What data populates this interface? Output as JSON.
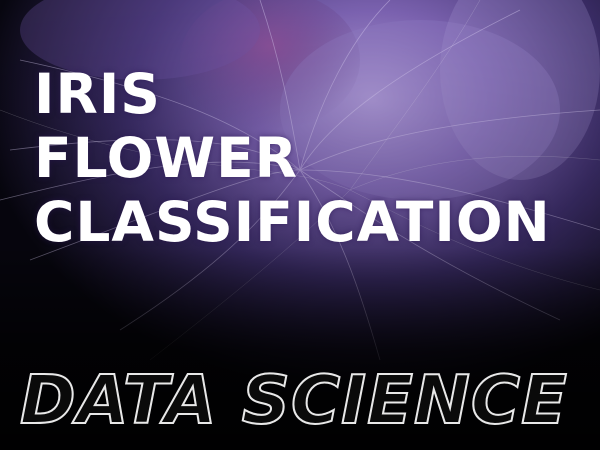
{
  "title": {
    "line1": "IRIS",
    "line2": "FLOWER",
    "line3": "CLASSIFICATION"
  },
  "footer": {
    "label": "DATA SCIENCE"
  },
  "background": {
    "subject": "purple iris flower with fine filaments",
    "colors": {
      "dark": "#07060f",
      "purple": "#6a4a9e",
      "lavender": "#b9a6e0",
      "magenta": "#7a3a86"
    }
  }
}
